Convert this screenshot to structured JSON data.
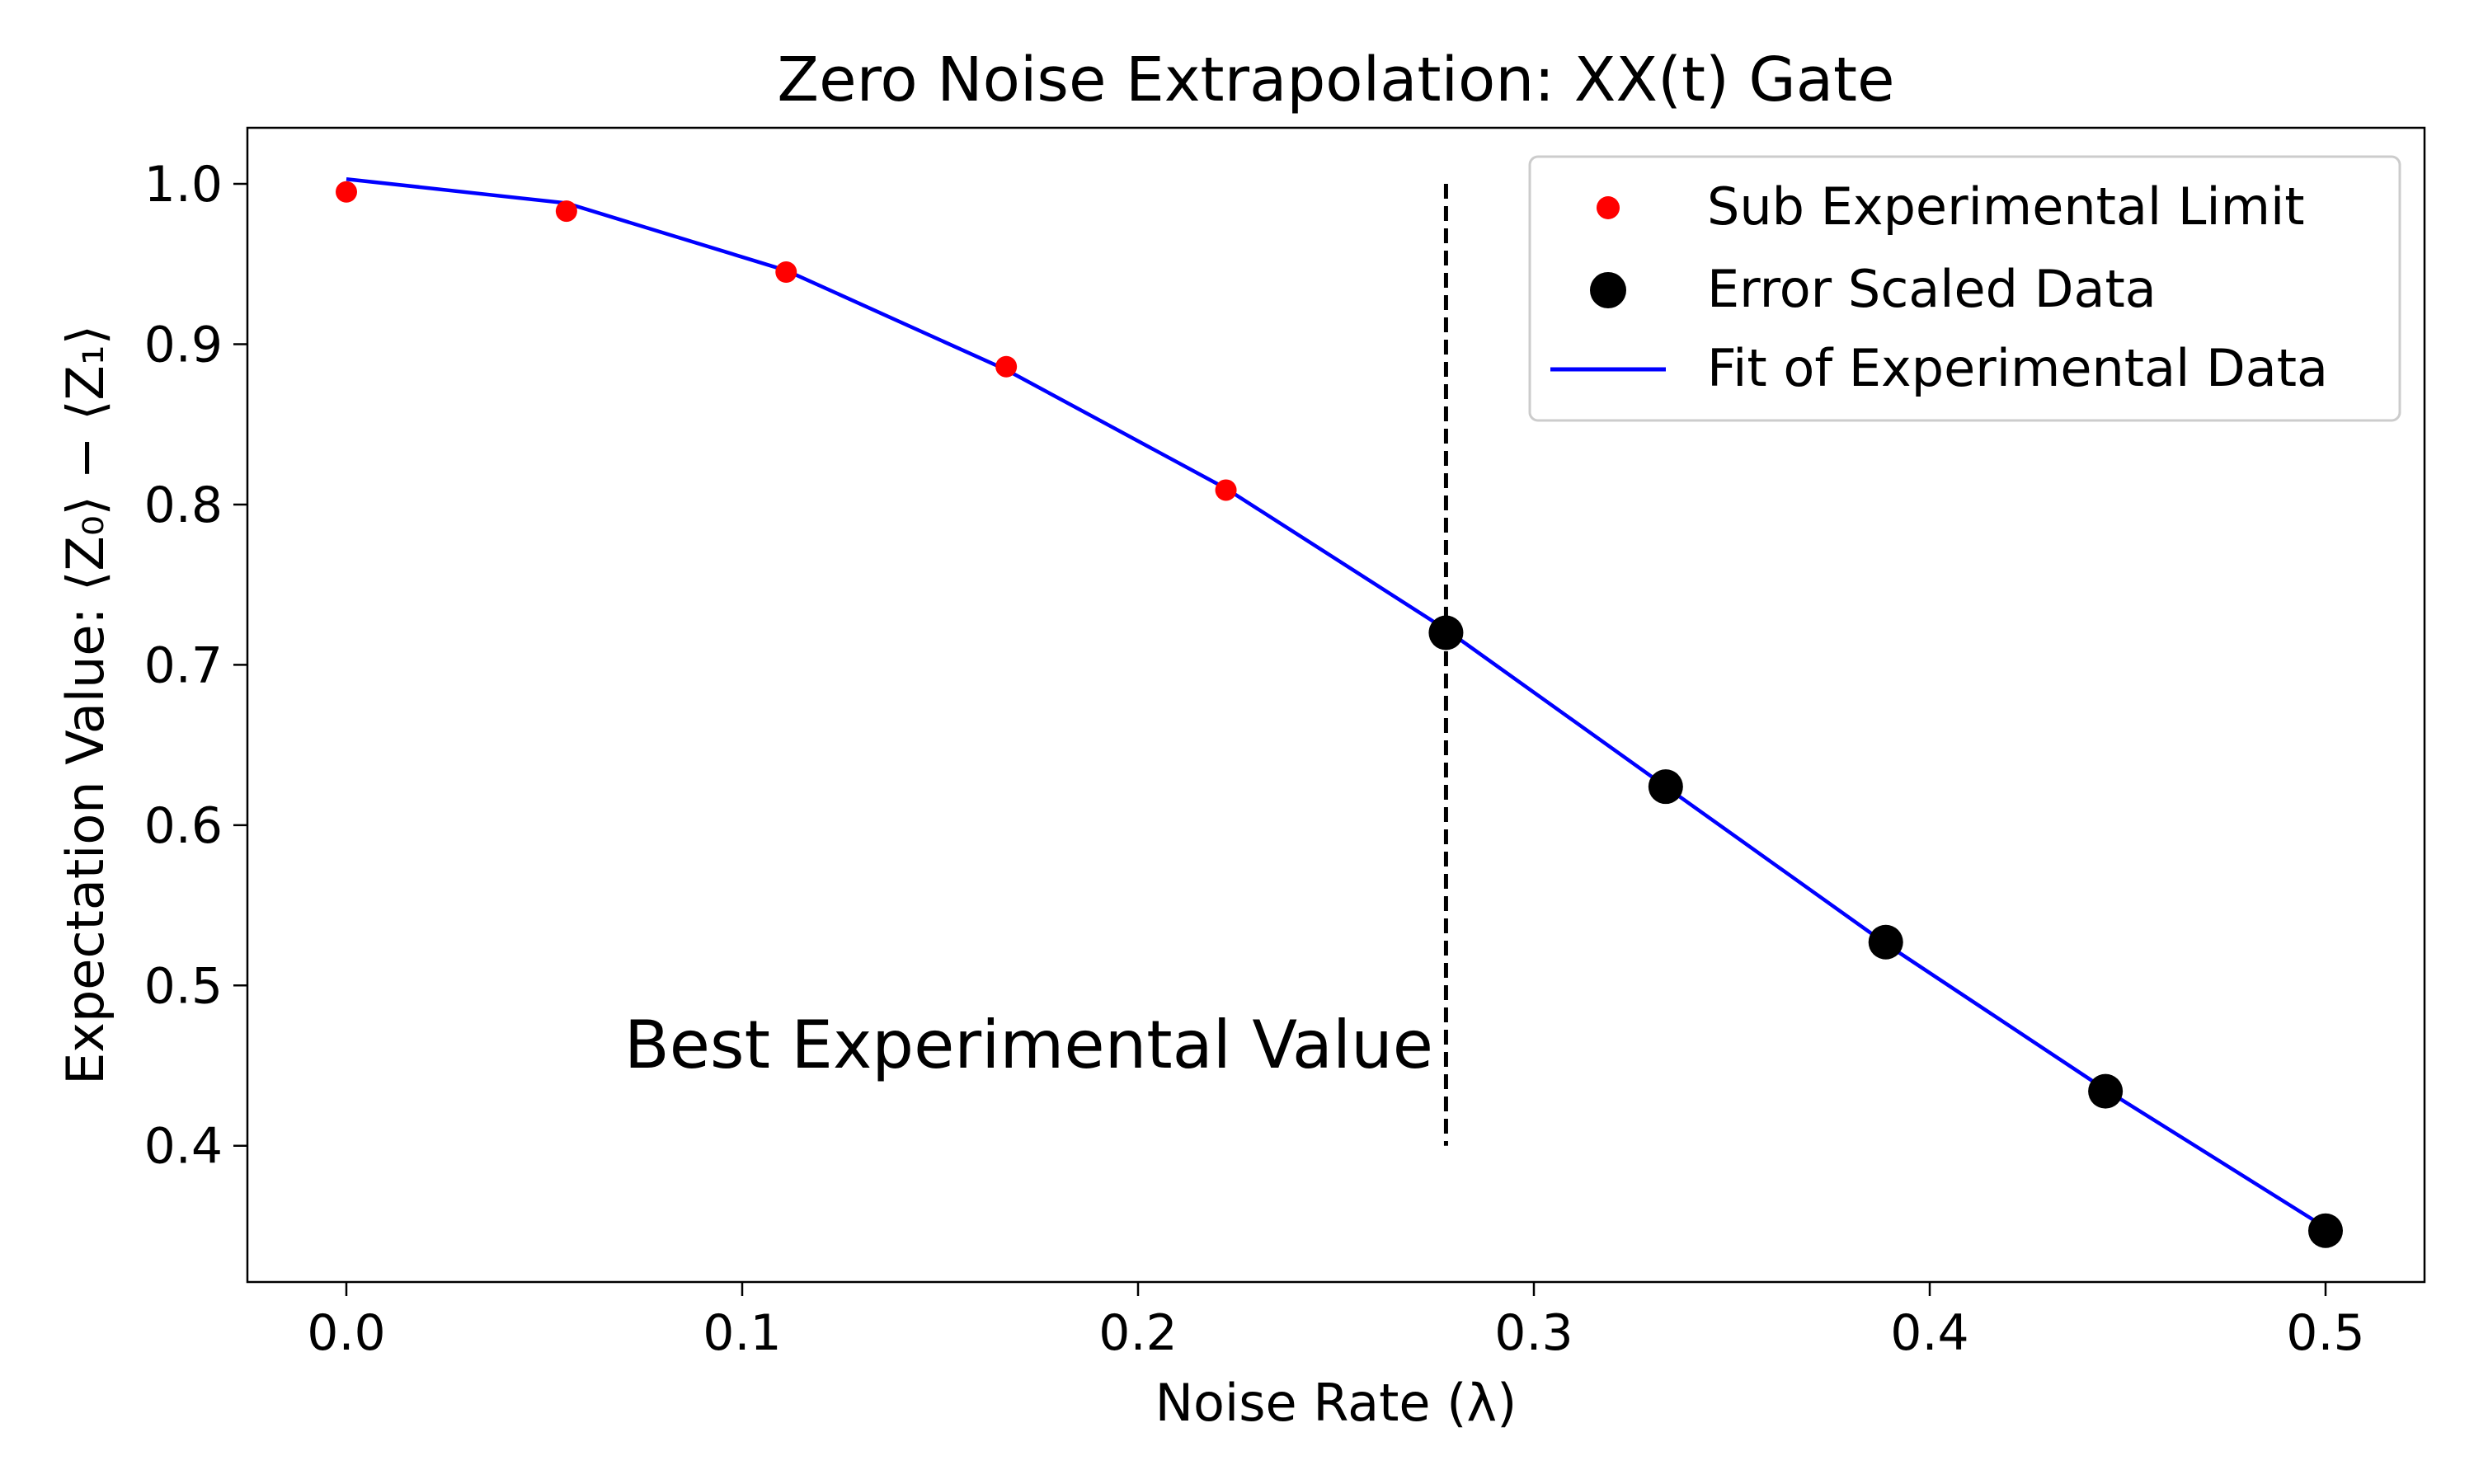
{
  "chart_data": {
    "type": "scatter",
    "title": "Zero Noise Extrapolation: XX(t) Gate",
    "xlabel": "Noise Rate (λ)",
    "ylabel": "Expectation Value: ⟨Z₀⟩ − ⟨Z₁⟩",
    "xlim": [
      -0.025,
      0.525
    ],
    "ylim": [
      0.315,
      1.035
    ],
    "xticks": [
      "0.0",
      "0.1",
      "0.2",
      "0.3",
      "0.4",
      "0.5"
    ],
    "yticks": [
      "0.4",
      "0.5",
      "0.6",
      "0.7",
      "0.8",
      "0.9",
      "1.0"
    ],
    "grid": false,
    "legend_position": "top-right",
    "series": [
      {
        "name": "Sub Experimental Limit",
        "kind": "scatter",
        "color": "#ff0000",
        "x": [
          0.0,
          0.0556,
          0.1111,
          0.1667,
          0.2222
        ],
        "y": [
          0.995,
          0.983,
          0.945,
          0.886,
          0.809
        ]
      },
      {
        "name": "Error Scaled Data",
        "kind": "scatter",
        "color": "#000000",
        "x": [
          0.2778,
          0.3333,
          0.3889,
          0.4444,
          0.5
        ],
        "y": [
          0.72,
          0.624,
          0.527,
          0.434,
          0.347
        ]
      },
      {
        "name": "Fit of Experimental Data",
        "kind": "line",
        "color": "#0000ff",
        "x": [
          0.0,
          0.0556,
          0.1111,
          0.1667,
          0.2222,
          0.2778,
          0.3333,
          0.3889,
          0.4444,
          0.5
        ],
        "y": [
          1.003,
          0.988,
          0.946,
          0.884,
          0.81,
          0.722,
          0.624,
          0.526,
          0.435,
          0.349
        ]
      }
    ],
    "annotation": {
      "text": "Best Experimental Value",
      "line_x": 0.2778,
      "line_y_range": [
        0.4,
        1.0
      ]
    }
  }
}
